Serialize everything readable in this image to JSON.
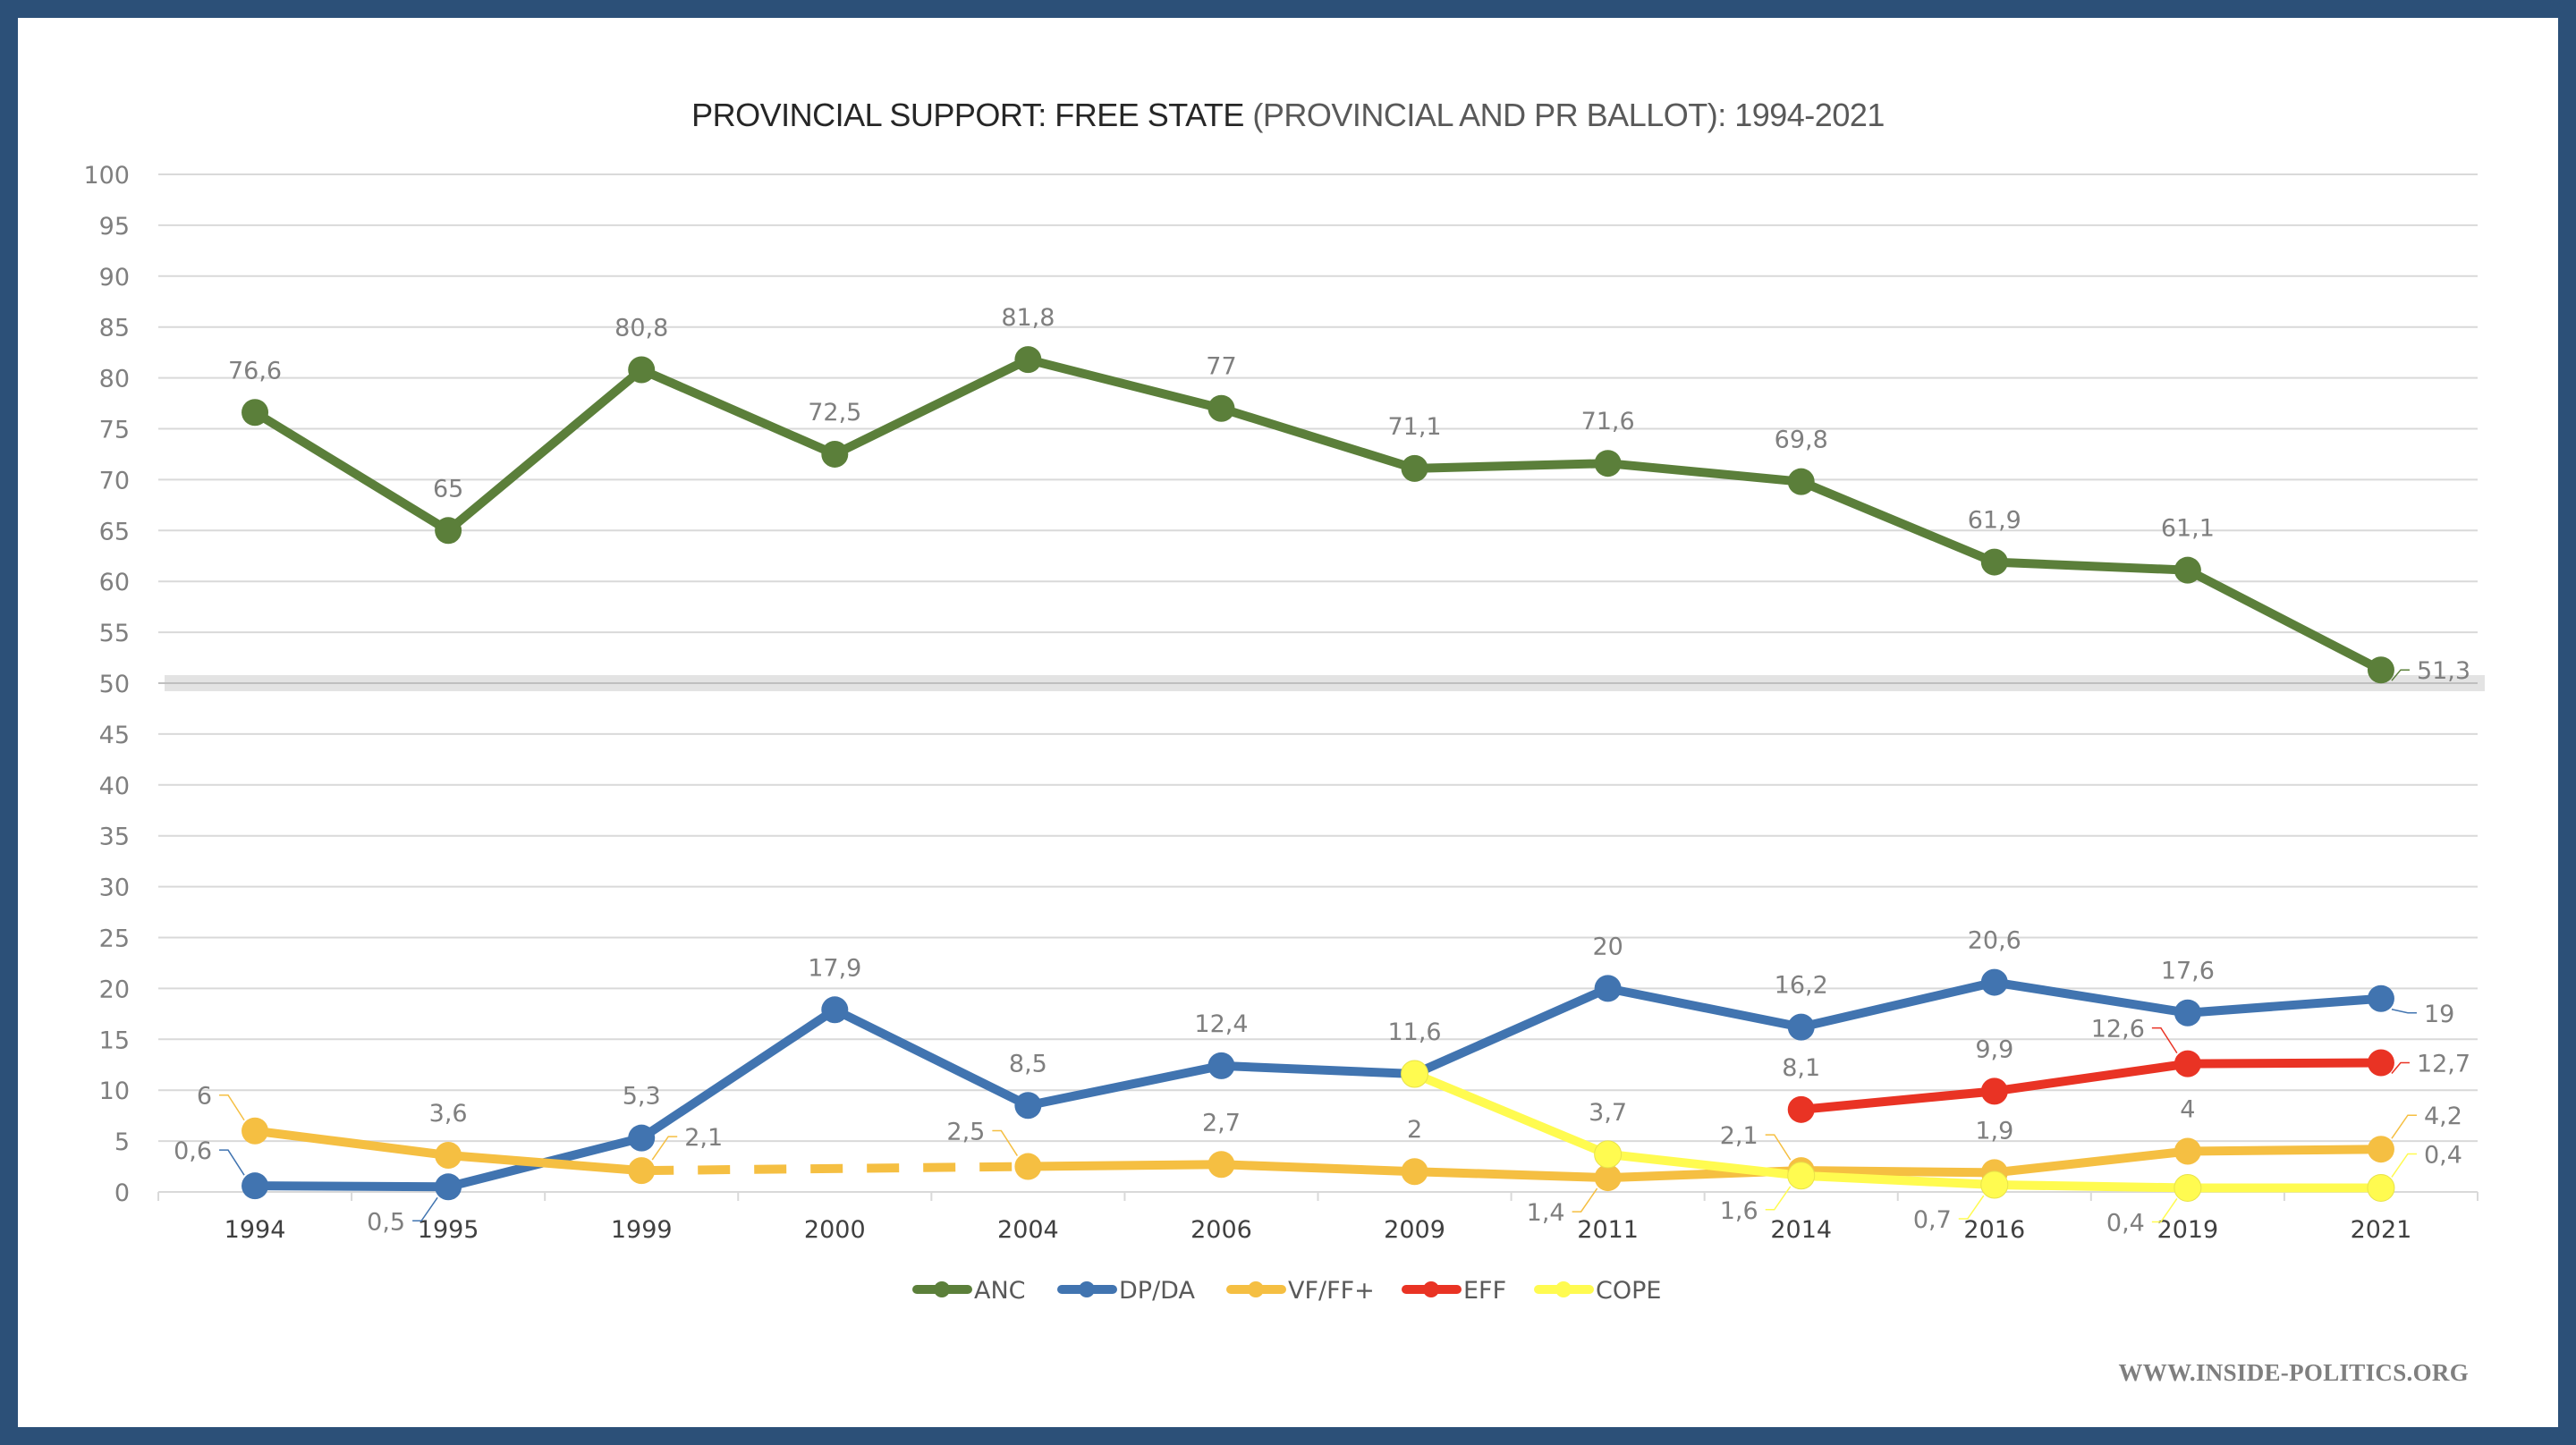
{
  "chart_data": {
    "type": "line",
    "title": "PROVINCIAL SUPPORT: FREE STATE",
    "subtitle": "(PROVINCIAL AND PR BALLOT): 1994-2021",
    "xlabel": "",
    "ylabel": "",
    "ylim": [
      0,
      100
    ],
    "yticks": [
      "0",
      "5",
      "10",
      "15",
      "20",
      "25",
      "30",
      "35",
      "40",
      "45",
      "50",
      "55",
      "60",
      "65",
      "70",
      "75",
      "80",
      "85",
      "90",
      "95",
      "100"
    ],
    "ytick_step": 5,
    "categories": [
      "1994",
      "1995",
      "1999",
      "2000",
      "2004",
      "2006",
      "2009",
      "2011",
      "2014",
      "2016",
      "2019",
      "2021"
    ],
    "grid": true,
    "highlight_line": 50,
    "legend_position": "bottom",
    "series": [
      {
        "name": "ANC",
        "color": "#5B7F3A",
        "values": [
          76.6,
          65,
          80.8,
          72.5,
          81.8,
          77,
          71.1,
          71.6,
          69.8,
          61.9,
          61.1,
          51.3
        ],
        "labels": [
          "76,6",
          "65",
          "80,8",
          "72,5",
          "81,8",
          "77",
          "71,1",
          "71,6",
          "69,8",
          "61,9",
          "61,1",
          "51,3"
        ],
        "label_pos": [
          "above",
          "above",
          "above",
          "above",
          "above",
          "above",
          "above",
          "above",
          "above",
          "above",
          "above",
          "right"
        ]
      },
      {
        "name": "DP/DA",
        "color": "#4174B0",
        "values": [
          0.6,
          0.5,
          5.3,
          17.9,
          8.5,
          12.4,
          11.6,
          20,
          16.2,
          20.6,
          17.6,
          19
        ],
        "labels": [
          "0,6",
          "0,5",
          "5,3",
          "17,9",
          "8,5",
          "12,4",
          "11,6",
          "20",
          "16,2",
          "20,6",
          "17,6",
          "19"
        ],
        "label_pos": [
          "left-above",
          "left-below",
          "above",
          "above",
          "above",
          "above",
          "above",
          "above",
          "above",
          "above",
          "above",
          "right-below"
        ]
      },
      {
        "name": "VF/FF+",
        "color": "#F5BF42",
        "values": [
          6,
          3.6,
          2.1,
          null,
          2.5,
          2.7,
          2,
          1.4,
          2.1,
          1.9,
          4,
          4.2
        ],
        "labels": [
          "6",
          "3,6",
          "2,1",
          null,
          "2,5",
          "2,7",
          "2",
          "1,4",
          "2,1",
          "1,9",
          "4",
          "4,2"
        ],
        "label_pos": [
          "left-above",
          "above",
          "right-above",
          null,
          "left-above",
          "above",
          "above",
          "left-below",
          "left-above",
          "above",
          "above",
          "right-above"
        ],
        "gap_style": "dashed"
      },
      {
        "name": "EFF",
        "color": "#E93324",
        "values": [
          null,
          null,
          null,
          null,
          null,
          null,
          null,
          null,
          8.1,
          9.9,
          12.6,
          12.7
        ],
        "labels": [
          null,
          null,
          null,
          null,
          null,
          null,
          null,
          null,
          "8,1",
          "9,9",
          "12,6",
          "12,7"
        ],
        "label_pos": [
          null,
          null,
          null,
          null,
          null,
          null,
          null,
          null,
          "above",
          "above",
          "left-above",
          "right"
        ]
      },
      {
        "name": "COPE",
        "color": "#FFFB50",
        "values": [
          null,
          null,
          null,
          null,
          null,
          null,
          11.6,
          3.7,
          1.6,
          0.7,
          0.4,
          0.4
        ],
        "labels": [
          null,
          null,
          null,
          null,
          null,
          null,
          null,
          "3,7",
          "1,6",
          "0,7",
          "0,4",
          "0,4"
        ],
        "label_pos": [
          null,
          null,
          null,
          null,
          null,
          null,
          null,
          "above",
          "left-below",
          "left-below",
          "left-below",
          "right-above"
        ]
      }
    ]
  },
  "watermark": "WWW.INSIDE-POLITICS.ORG"
}
